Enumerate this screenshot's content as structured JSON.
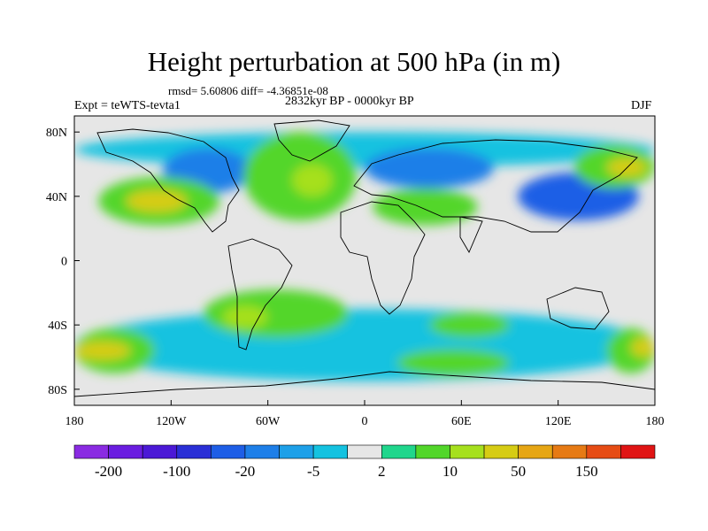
{
  "title": "Height perturbation at 500 hPa (in m)",
  "stats_line": "rmsd= 5.60806 diff= -4.36851e-08",
  "period": "2832kyr BP - 0000kyr BP",
  "experiment": "Expt = teWTS-tevta1",
  "season": "DJF",
  "axes": {
    "x_ticks": [
      {
        "lon": -180,
        "label": "180"
      },
      {
        "lon": -120,
        "label": "120W"
      },
      {
        "lon": -60,
        "label": "60W"
      },
      {
        "lon": 0,
        "label": "0"
      },
      {
        "lon": 60,
        "label": "60E"
      },
      {
        "lon": 120,
        "label": "120E"
      },
      {
        "lon": 180,
        "label": "180"
      }
    ],
    "y_ticks": [
      {
        "lat": 80,
        "label": "80N"
      },
      {
        "lat": 40,
        "label": "40N"
      },
      {
        "lat": 0,
        "label": "0"
      },
      {
        "lat": -40,
        "label": "40S"
      },
      {
        "lat": -80,
        "label": "80S"
      }
    ],
    "lon_range": [
      -180,
      180
    ],
    "lat_range": [
      -90,
      90
    ]
  },
  "colorbar": {
    "colors": [
      "#8a2be2",
      "#6a1de0",
      "#4b19d6",
      "#2a2fd6",
      "#1e5ee6",
      "#1e7fe8",
      "#1ea0e8",
      "#14c2e0",
      "#e6e6e6",
      "#20d68c",
      "#52d62a",
      "#a6e01e",
      "#d6cc14",
      "#e6a614",
      "#e67a14",
      "#e64c14",
      "#e01414"
    ],
    "labels": [
      "-200",
      "-100",
      "-20",
      "-5",
      "2",
      "10",
      "50",
      "150"
    ]
  },
  "field": {
    "neutral_color": "#e6e6e6",
    "anomalies": [
      {
        "name": "cyan NH band",
        "lon": [
          -180,
          180
        ],
        "lat": [
          58,
          80
        ],
        "color": "#14c2e0"
      },
      {
        "name": "blue N America",
        "lon": [
          -125,
          -70
        ],
        "lat": [
          42,
          70
        ],
        "color": "#1e7fe8"
      },
      {
        "name": "green N Pacific",
        "lon": [
          -165,
          -90
        ],
        "lat": [
          22,
          52
        ],
        "color": "#52d62a"
      },
      {
        "name": "yellow N Pacific core",
        "lon": [
          -148,
          -110
        ],
        "lat": [
          30,
          44
        ],
        "color": "#d6cc14"
      },
      {
        "name": "green N Atlantic",
        "lon": [
          -75,
          -5
        ],
        "lat": [
          25,
          80
        ],
        "color": "#52d62a"
      },
      {
        "name": "yellow N Atlantic core",
        "lon": [
          -45,
          -20
        ],
        "lat": [
          40,
          60
        ],
        "color": "#a6e01e"
      },
      {
        "name": "blue Eurasia",
        "lon": [
          0,
          80
        ],
        "lat": [
          45,
          70
        ],
        "color": "#1e7fe8"
      },
      {
        "name": "green Mediterranean",
        "lon": [
          5,
          70
        ],
        "lat": [
          22,
          45
        ],
        "color": "#52d62a"
      },
      {
        "name": "blue East Asia",
        "lon": [
          95,
          170
        ],
        "lat": [
          25,
          55
        ],
        "color": "#1e5ee6"
      },
      {
        "name": "green NE Pacific",
        "lon": [
          130,
          180
        ],
        "lat": [
          45,
          72
        ],
        "color": "#52d62a"
      },
      {
        "name": "yellow NE Pacific core",
        "lon": [
          150,
          175
        ],
        "lat": [
          52,
          64
        ],
        "color": "#d6cc14"
      },
      {
        "name": "cyan SH band",
        "lon": [
          -180,
          180
        ],
        "lat": [
          -75,
          -30
        ],
        "color": "#14c2e0"
      },
      {
        "name": "green S Pacific",
        "lon": [
          -180,
          -130
        ],
        "lat": [
          -70,
          -42
        ],
        "color": "#52d62a"
      },
      {
        "name": "yellow S Pacific core",
        "lon": [
          -180,
          -145
        ],
        "lat": [
          -62,
          -50
        ],
        "color": "#d6cc14"
      },
      {
        "name": "green S Atlantic",
        "lon": [
          -100,
          -10
        ],
        "lat": [
          -48,
          -18
        ],
        "color": "#52d62a"
      },
      {
        "name": "yellow S America core",
        "lon": [
          -88,
          -60
        ],
        "lat": [
          -42,
          -28
        ],
        "color": "#a6e01e"
      },
      {
        "name": "green S Indian",
        "lon": [
          20,
          90
        ],
        "lat": [
          -72,
          -55
        ],
        "color": "#52d62a"
      },
      {
        "name": "green S Indian 2",
        "lon": [
          40,
          90
        ],
        "lat": [
          -48,
          -32
        ],
        "color": "#52d62a"
      },
      {
        "name": "green SE Pacific",
        "lon": [
          150,
          180
        ],
        "lat": [
          -70,
          -42
        ],
        "color": "#52d62a"
      },
      {
        "name": "yellow SE Pacific core",
        "lon": [
          165,
          180
        ],
        "lat": [
          -60,
          -48
        ],
        "color": "#d6cc14"
      }
    ]
  }
}
